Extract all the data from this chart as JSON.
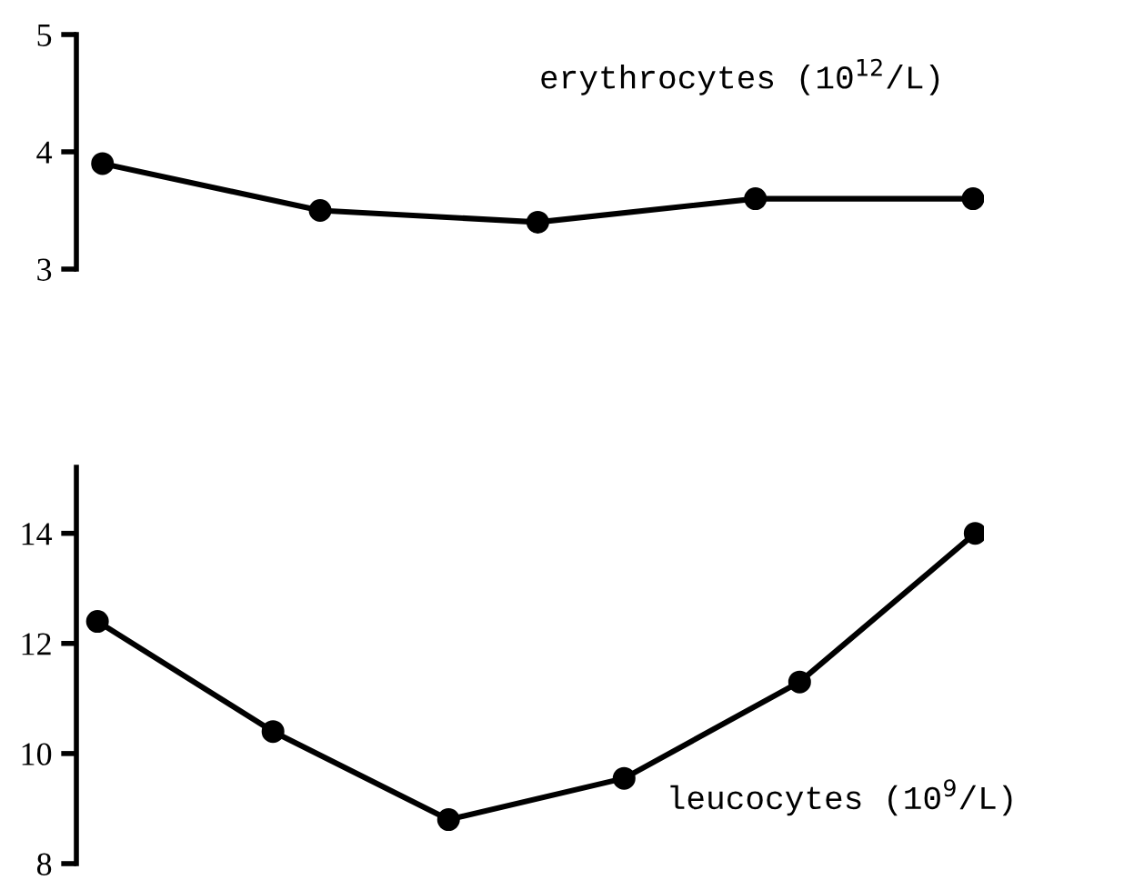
{
  "chart_data": [
    {
      "type": "line",
      "categories": [
        null,
        null,
        null,
        null,
        null
      ],
      "values": [
        3.9,
        3.5,
        3.4,
        3.6,
        3.6
      ],
      "color": "#000000",
      "marker": "circle",
      "line_style": "solid",
      "ylim": [
        3,
        5
      ],
      "yticks": [
        3,
        4,
        5
      ],
      "tick_labels": "y",
      "annotations": [
        "erythrocytes (10$^{12}$/L)"
      ]
    },
    {
      "type": "line",
      "categories": [
        null,
        null,
        null,
        null,
        null,
        null
      ],
      "values": [
        12.4,
        10.4,
        8.8,
        9.55,
        11.3,
        14.0
      ],
      "color": "#000000",
      "marker": "circle",
      "line_style": "solid",
      "ylim": [
        8,
        15.2
      ],
      "yticks": [
        8,
        10,
        12,
        14
      ],
      "tick_labels": "y",
      "annotations": [
        "leucocytes (10$^{9}$/L)"
      ]
    }
  ]
}
